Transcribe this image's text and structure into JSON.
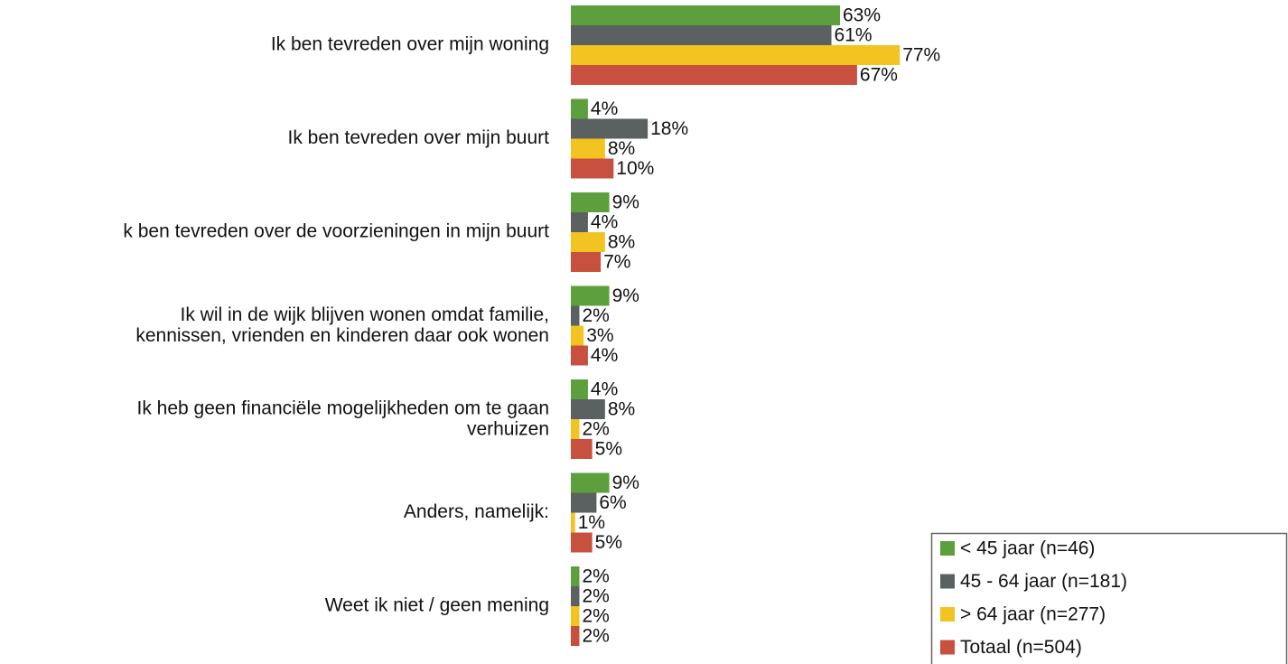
{
  "chart_data": {
    "type": "bar",
    "orientation": "horizontal",
    "categories": [
      "Ik ben tevreden over mijn woning",
      "Ik ben tevreden over mijn buurt",
      "k ben tevreden over de voorzieningen in mijn buurt",
      "Ik wil in de wijk blijven wonen omdat familie,\nkennissen, vrienden en kinderen daar ook wonen",
      "Ik heb geen financiële mogelijkheden om te gaan\nverhuizen",
      "Anders, namelijk:",
      "Weet ik niet / geen mening"
    ],
    "xlim": [
      0,
      100
    ],
    "legend": "bottom-right",
    "series": [
      {
        "name": "< 45 jaar (n=46)",
        "color": "#5e9f3d",
        "values": [
          63,
          4,
          9,
          9,
          4,
          9,
          2
        ],
        "value_labels": [
          "63%",
          "4%",
          "9%",
          "9%",
          "4%",
          "9%",
          "2%"
        ]
      },
      {
        "name": "45 - 64 jaar (n=181)",
        "color": "#5b6161",
        "values": [
          61,
          18,
          4,
          2,
          8,
          6,
          2
        ],
        "value_labels": [
          "61%",
          "18%",
          "4%",
          "2%",
          "8%",
          "6%",
          "2%"
        ]
      },
      {
        "name": "> 64 jaar (n=277)",
        "color": "#f3c322",
        "values": [
          77,
          8,
          8,
          3,
          2,
          1,
          2
        ],
        "value_labels": [
          "77%",
          "8%",
          "8%",
          "3%",
          "2%",
          "1%",
          "2%"
        ]
      },
      {
        "name": "Totaal (n=504)",
        "color": "#c8503f",
        "values": [
          67,
          10,
          7,
          4,
          5,
          5,
          2
        ],
        "value_labels": [
          "67%",
          "10%",
          "7%",
          "4%",
          "5%",
          "5%",
          "2%"
        ]
      }
    ]
  }
}
